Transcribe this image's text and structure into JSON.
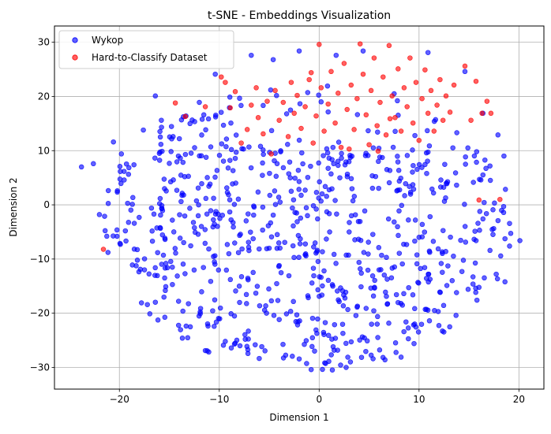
{
  "chart_data": {
    "type": "scatter",
    "title": "t-SNE - Embeddings Visualization",
    "xlabel": "Dimension 1",
    "ylabel": "Dimension 2",
    "xlim": [
      -26.5,
      22.5
    ],
    "ylim": [
      -34,
      33
    ],
    "x_ticks": [
      -20,
      -10,
      0,
      10,
      20
    ],
    "x_tick_labels": [
      "−20",
      "−10",
      "0",
      "10",
      "20"
    ],
    "y_ticks": [
      -30,
      -20,
      -10,
      0,
      10,
      20,
      30
    ],
    "y_tick_labels": [
      "−30",
      "−20",
      "−10",
      "0",
      "10",
      "20",
      "30"
    ],
    "grid": true,
    "legend_position": "top-left",
    "series": [
      {
        "name": "Wykop",
        "color": "#0000ff",
        "random_seed": 7,
        "random_count": 760,
        "points": [
          [
            -23.8,
            7.0
          ],
          [
            -22.6,
            7.6
          ],
          [
            -22.0,
            -1.8
          ],
          [
            -20.6,
            11.6
          ],
          [
            -20.2,
            2.6
          ],
          [
            -19.8,
            9.4
          ],
          [
            -19.4,
            -4.8
          ],
          [
            -18.7,
            0.1
          ],
          [
            -17.9,
            -11.9
          ],
          [
            -17.2,
            -18.4
          ],
          [
            -16.4,
            20.1
          ],
          [
            -15.4,
            -15.8
          ],
          [
            -14.6,
            4.6
          ],
          [
            -13.7,
            -24.6
          ],
          [
            -12.9,
            -22.5
          ],
          [
            -11.4,
            -26.9
          ],
          [
            -10.4,
            24.1
          ],
          [
            -8.8,
            -26.4
          ],
          [
            -7.4,
            -24.8
          ],
          [
            -6.8,
            27.6
          ],
          [
            -4.6,
            26.8
          ],
          [
            -2.0,
            28.4
          ],
          [
            -0.8,
            -30.4
          ],
          [
            1.7,
            27.6
          ],
          [
            2.7,
            -30.0
          ],
          [
            4.4,
            28.4
          ],
          [
            5.4,
            -28.4
          ],
          [
            8.2,
            -28.1
          ],
          [
            9.5,
            -25.6
          ],
          [
            10.9,
            28.1
          ],
          [
            13.7,
            -20.4
          ],
          [
            14.6,
            24.6
          ],
          [
            15.9,
            -3.4
          ],
          [
            17.1,
            -8.4
          ],
          [
            17.9,
            12.9
          ],
          [
            18.6,
            -14.2
          ],
          [
            18.5,
            9.0
          ],
          [
            20.1,
            -6.6
          ],
          [
            17.4,
            -0.9
          ],
          [
            16.4,
            16.9
          ],
          [
            -12.0,
            18.9
          ],
          [
            -15.8,
            15.6
          ],
          [
            -17.6,
            13.8
          ],
          [
            -14.0,
            12.2
          ],
          [
            0.2,
            19.0
          ],
          [
            3.0,
            -5.0
          ],
          [
            -5.0,
            -8.0
          ],
          [
            6.0,
            -12.0
          ],
          [
            -8.0,
            -15.0
          ],
          [
            10.0,
            -6.0
          ]
        ]
      },
      {
        "name": "Hard-to-Classify Dataset",
        "color": "#ff0000",
        "points": [
          [
            -21.6,
            -8.2
          ],
          [
            -14.4,
            18.8
          ],
          [
            -13.4,
            16.3
          ],
          [
            -11.4,
            18.1
          ],
          [
            -9.8,
            23.6
          ],
          [
            -9.4,
            22.6
          ],
          [
            -8.9,
            17.9
          ],
          [
            -8.4,
            20.9
          ],
          [
            -7.2,
            13.9
          ],
          [
            -7.8,
            11.4
          ],
          [
            -6.8,
            18.4
          ],
          [
            -6.3,
            21.6
          ],
          [
            -6.1,
            16.1
          ],
          [
            -5.6,
            13.1
          ],
          [
            -5.2,
            19.1
          ],
          [
            -4.8,
            9.4
          ],
          [
            -4.4,
            21.1
          ],
          [
            -4.0,
            15.6
          ],
          [
            -3.6,
            18.9
          ],
          [
            -3.1,
            12.6
          ],
          [
            -2.8,
            22.6
          ],
          [
            -2.5,
            16.9
          ],
          [
            -2.2,
            20.2
          ],
          [
            -1.8,
            14.1
          ],
          [
            -1.4,
            18.1
          ],
          [
            -1.0,
            23.1
          ],
          [
            -0.6,
            11.4
          ],
          [
            -0.3,
            16.4
          ],
          [
            0.0,
            29.6
          ],
          [
            0.2,
            21.6
          ],
          [
            0.5,
            13.6
          ],
          [
            0.9,
            18.6
          ],
          [
            1.2,
            24.6
          ],
          [
            1.6,
            15.1
          ],
          [
            1.9,
            20.6
          ],
          [
            2.2,
            10.6
          ],
          [
            2.5,
            26.1
          ],
          [
            2.8,
            17.6
          ],
          [
            3.2,
            22.1
          ],
          [
            3.5,
            13.9
          ],
          [
            3.8,
            19.6
          ],
          [
            4.1,
            29.7
          ],
          [
            4.4,
            24.1
          ],
          [
            4.7,
            16.6
          ],
          [
            5.0,
            11.1
          ],
          [
            5.2,
            21.1
          ],
          [
            5.5,
            27.1
          ],
          [
            5.8,
            14.6
          ],
          [
            6.1,
            18.9
          ],
          [
            6.4,
            23.6
          ],
          [
            6.7,
            12.9
          ],
          [
            7.0,
            29.4
          ],
          [
            7.3,
            20.1
          ],
          [
            7.6,
            16.1
          ],
          [
            7.9,
            25.1
          ],
          [
            8.2,
            13.6
          ],
          [
            8.5,
            21.6
          ],
          [
            8.8,
            18.1
          ],
          [
            9.1,
            27.1
          ],
          [
            9.4,
            15.1
          ],
          [
            9.7,
            22.6
          ],
          [
            10.0,
            11.9
          ],
          [
            10.3,
            19.6
          ],
          [
            10.6,
            24.9
          ],
          [
            10.9,
            16.9
          ],
          [
            11.2,
            21.1
          ],
          [
            11.5,
            13.6
          ],
          [
            11.8,
            18.4
          ],
          [
            12.1,
            23.1
          ],
          [
            12.4,
            15.6
          ],
          [
            12.7,
            20.1
          ],
          [
            13.1,
            17.1
          ],
          [
            13.5,
            22.1
          ],
          [
            14.6,
            25.6
          ],
          [
            15.2,
            15.6
          ],
          [
            15.7,
            22.8
          ],
          [
            16.0,
            0.9
          ],
          [
            16.3,
            16.9
          ],
          [
            16.8,
            19.1
          ],
          [
            17.2,
            16.9
          ],
          [
            18.1,
            1.0
          ],
          [
            3.0,
            10.3
          ],
          [
            -0.8,
            24.4
          ],
          [
            5.9,
            9.9
          ],
          [
            7.1,
            15.9
          ]
        ]
      }
    ]
  }
}
